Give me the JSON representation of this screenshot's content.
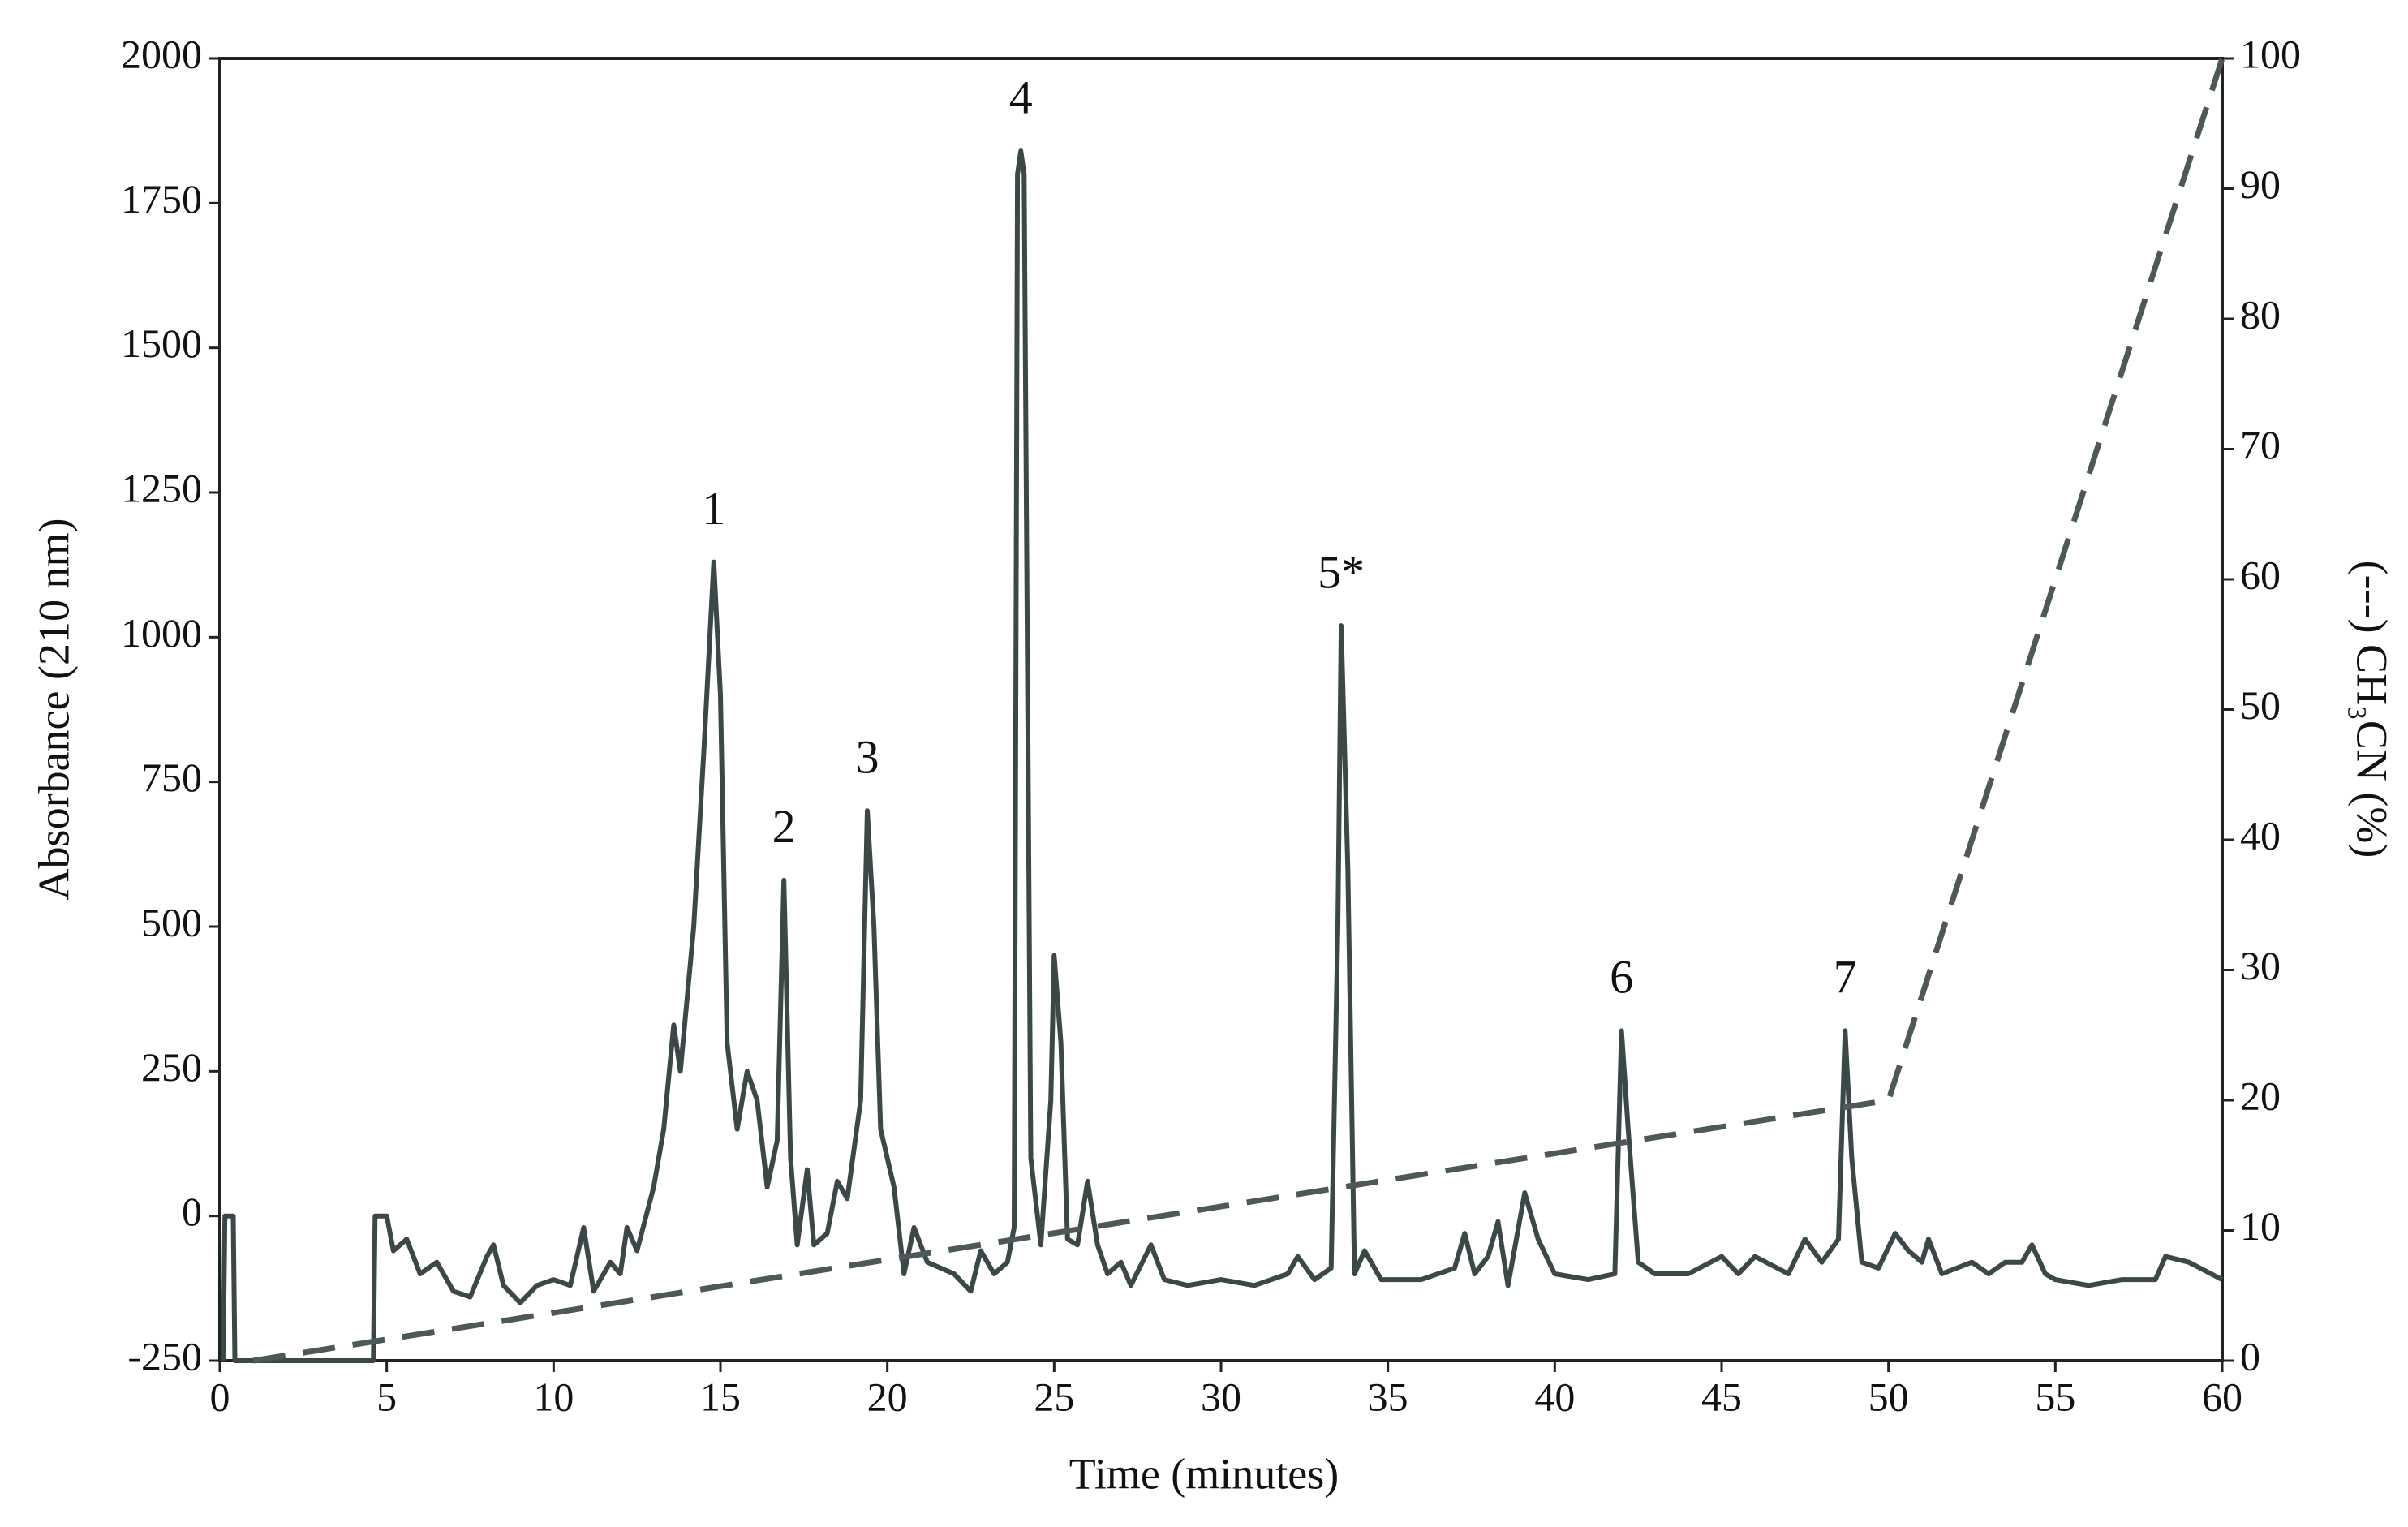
{
  "chart_data": {
    "type": "line",
    "xlabel": "Time (minutes)",
    "ylabel": "Absorbance (210 nm)",
    "y2label": "(---) CH₃CN (%)",
    "xlim": [
      0,
      60
    ],
    "xticks": [
      0,
      5,
      10,
      15,
      20,
      25,
      30,
      35,
      40,
      45,
      50,
      55,
      60
    ],
    "ylim": [
      -250,
      2000
    ],
    "yticks": [
      -250,
      0,
      250,
      500,
      750,
      1000,
      1250,
      1500,
      1750,
      2000
    ],
    "y2lim": [
      0,
      100
    ],
    "y2ticks": [
      0,
      10,
      20,
      30,
      40,
      50,
      60,
      70,
      80,
      90,
      100
    ],
    "series": [
      {
        "color": "#3b4848",
        "x": [
          0.1,
          0.15,
          0.4,
          0.45,
          4.6,
          4.65,
          5,
          5.2,
          5.6,
          6,
          6.5,
          7,
          7.5,
          8,
          8.2,
          8.5,
          9,
          9.5,
          10,
          10.5,
          10.9,
          11.2,
          11.7,
          12,
          12.2,
          12.5,
          13,
          13.3,
          13.6,
          13.8,
          14.2,
          14.5,
          14.8,
          15,
          15.2,
          15.5,
          15.8,
          16.1,
          16.4,
          16.7,
          16.9,
          17.1,
          17.3,
          17.6,
          17.8,
          18.2,
          18.5,
          18.8,
          19.2,
          19.4,
          19.6,
          19.8,
          20.2,
          20.5,
          20.8,
          21.2,
          22,
          22.5,
          22.8,
          23.2,
          23.6,
          23.8,
          23.9,
          24.0,
          24.1,
          24.3,
          24.6,
          24.9,
          25.0,
          25.2,
          25.4,
          25.7,
          26,
          26.3,
          26.6,
          27,
          27.3,
          27.9,
          28.3,
          29,
          30,
          31,
          32,
          32.3,
          32.8,
          33.3,
          33.5,
          33.6,
          33.8,
          34,
          34.3,
          34.8,
          36,
          37,
          37.3,
          37.6,
          38,
          38.3,
          38.6,
          39.1,
          39.5,
          40,
          41,
          41.8,
          42.0,
          42.2,
          42.5,
          43,
          44,
          45,
          45.5,
          46,
          47,
          47.5,
          48,
          48.5,
          48.7,
          48.9,
          49.2,
          49.7,
          50.2,
          50.6,
          51,
          51.2,
          51.6,
          52.5,
          53,
          53.5,
          54,
          54.3,
          54.7,
          55,
          56,
          57,
          58,
          58.3,
          59,
          60
        ],
        "values": [
          -250,
          0,
          0,
          -250,
          -250,
          0,
          0,
          -60,
          -40,
          -100,
          -80,
          -130,
          -140,
          -70,
          -50,
          -120,
          -150,
          -120,
          -110,
          -120,
          -20,
          -130,
          -80,
          -100,
          -20,
          -60,
          50,
          150,
          330,
          250,
          500,
          800,
          1130,
          900,
          300,
          150,
          250,
          200,
          50,
          130,
          580,
          100,
          -50,
          80,
          -50,
          -30,
          60,
          30,
          200,
          700,
          500,
          150,
          50,
          -100,
          -20,
          -80,
          -100,
          -130,
          -60,
          -100,
          -80,
          -20,
          1800,
          1840,
          1800,
          100,
          -50,
          200,
          450,
          300,
          -40,
          -50,
          60,
          -50,
          -100,
          -80,
          -120,
          -50,
          -110,
          -120,
          -110,
          -120,
          -100,
          -70,
          -110,
          -90,
          500,
          1020,
          600,
          -100,
          -60,
          -110,
          -110,
          -90,
          -30,
          -100,
          -70,
          -10,
          -120,
          40,
          -40,
          -100,
          -110,
          -100,
          320,
          150,
          -80,
          -100,
          -100,
          -70,
          -100,
          -70,
          -100,
          -40,
          -80,
          -40,
          320,
          100,
          -80,
          -90,
          -30,
          -60,
          -80,
          -40,
          -100,
          -80,
          -100,
          -80,
          -80,
          -50,
          -100,
          -110,
          -120,
          -110,
          -110,
          -70,
          -80,
          -110
        ]
      },
      {
        "color": "#4d5858",
        "axis": "y2",
        "dashed": true,
        "x": [
          1,
          50,
          60
        ],
        "values": [
          0,
          20,
          100
        ]
      }
    ],
    "annotations": [
      {
        "label": "1",
        "x": 14.8,
        "y": 1130
      },
      {
        "label": "2",
        "x": 16.9,
        "y": 580
      },
      {
        "label": "3",
        "x": 19.4,
        "y": 700
      },
      {
        "label": "4",
        "x": 24.0,
        "y": 1840
      },
      {
        "label": "5*",
        "x": 33.6,
        "y": 1020
      },
      {
        "label": "6",
        "x": 42.0,
        "y": 320
      },
      {
        "label": "7",
        "x": 48.7,
        "y": 320
      }
    ]
  }
}
